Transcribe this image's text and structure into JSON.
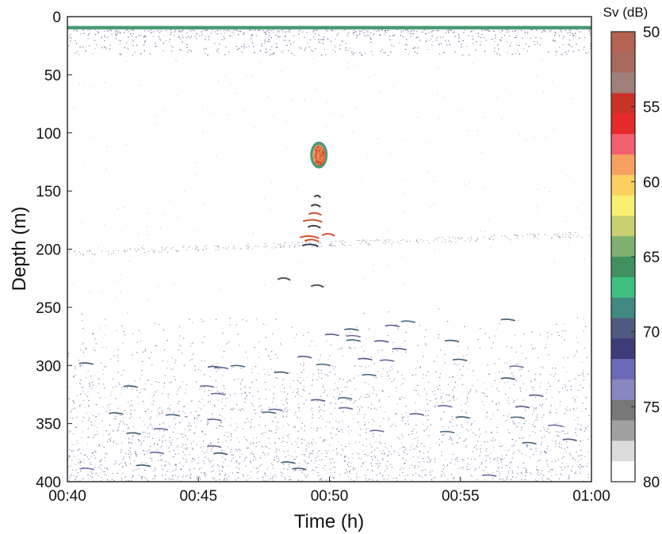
{
  "chart_data": {
    "type": "heatmap",
    "title": "",
    "xlabel": "Time (h)",
    "ylabel": "Depth (m)",
    "x_ticks": [
      "00:40",
      "00:45",
      "00:50",
      "00:55",
      "01:00"
    ],
    "x_range_minutes": [
      40,
      60
    ],
    "y_ticks": [
      0,
      50,
      100,
      150,
      200,
      250,
      300,
      350,
      400
    ],
    "ylim": [
      0,
      400
    ],
    "y_inverted": true,
    "colorbar": {
      "title": "Sv (dB)",
      "ticks": [
        50,
        55,
        60,
        65,
        70,
        75,
        80
      ],
      "range": [
        50,
        80
      ],
      "colors": [
        "#b46450",
        "#a86a5e",
        "#a0807a",
        "#ca3228",
        "#e62a2a",
        "#f06070",
        "#f8a060",
        "#fcd060",
        "#f8f070",
        "#c8d070",
        "#80b070",
        "#409060",
        "#40c080",
        "#408880",
        "#505a80",
        "#3c3c78",
        "#6a6ab8",
        "#8888c0",
        "#787878",
        "#a0a0a0",
        "#dcdcdc",
        "#ffffff"
      ]
    },
    "features": [
      {
        "name": "surface band",
        "time_min": [
          40,
          60
        ],
        "depth_m": [
          8,
          11
        ],
        "sv_db": 65
      },
      {
        "name": "dense target",
        "time_min": 49.6,
        "depth_m": [
          108,
          130
        ],
        "sv_db": 55
      },
      {
        "name": "weak layer",
        "time_min": [
          40,
          60
        ],
        "depth_m": [
          180,
          205
        ],
        "sv_db": 72
      },
      {
        "name": "scattered echoes",
        "time_min": [
          49,
          50.5
        ],
        "depth_m": [
          155,
          232
        ],
        "sv_db": 58
      },
      {
        "name": "deep scattering layer",
        "time_min": [
          40,
          60
        ],
        "depth_m": [
          250,
          400
        ],
        "sv_db": 72
      }
    ]
  }
}
